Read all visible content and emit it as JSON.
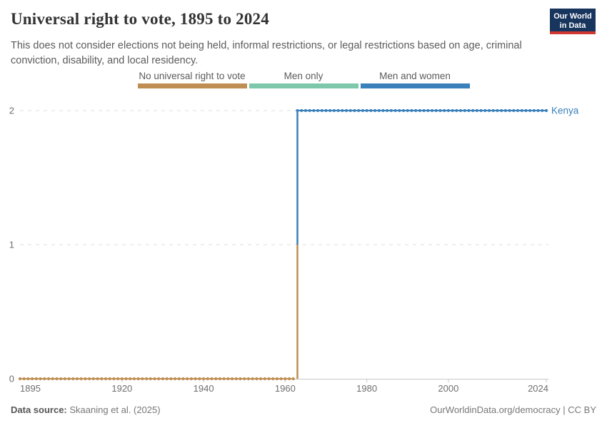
{
  "header": {
    "title": "Universal right to vote, 1895 to 2024",
    "subtitle": "This does not consider elections not being held, informal restrictions, or legal restrictions based on age, criminal conviction, disability, and local residency.",
    "logo_line1": "Our World",
    "logo_line2": "in Data",
    "logo_bg": "#18355e",
    "logo_underline": "#d13832"
  },
  "legend": {
    "items": [
      {
        "label": "No universal right to vote",
        "color": "#BF8E53"
      },
      {
        "label": "Men only",
        "color": "#7DC8AA"
      },
      {
        "label": "Men and women",
        "color": "#3A80BB"
      }
    ]
  },
  "chart_data": {
    "type": "line",
    "style": "step-line-with-yearly-dot-markers",
    "title": "Universal right to vote, 1895 to 2024",
    "xlabel": "",
    "ylabel": "",
    "xlim": [
      1895,
      2024
    ],
    "ylim": [
      0,
      2
    ],
    "x_ticks": [
      1895,
      1920,
      1940,
      1960,
      1980,
      2000,
      2024
    ],
    "y_ticks": [
      0,
      1,
      2
    ],
    "grid": "horizontal dashed at y=1 and y=2, solid axis at y=0",
    "legend_position": "top center",
    "value_categories": {
      "0": "No universal right to vote",
      "1": "Men only",
      "2": "Men and women"
    },
    "series": [
      {
        "name": "Kenya",
        "label_color": "#3A80BB",
        "segments": [
          {
            "from_year": 1895,
            "to_year": 1962,
            "value": 0,
            "category": "No universal right to vote",
            "color": "#BF8E53"
          },
          {
            "from_year": 1963,
            "to_year": 2024,
            "value": 2,
            "category": "Men and women",
            "color": "#3A80BB"
          }
        ]
      }
    ],
    "colors": {
      "gridline": "#dedede",
      "axis": "#c9c9c9",
      "tick_label": "#6e6e6e"
    }
  },
  "footer": {
    "source_label": "Data source:",
    "source_value": "Skaaning et al. (2025)",
    "rights": "OurWorldinData.org/democracy | CC BY"
  }
}
